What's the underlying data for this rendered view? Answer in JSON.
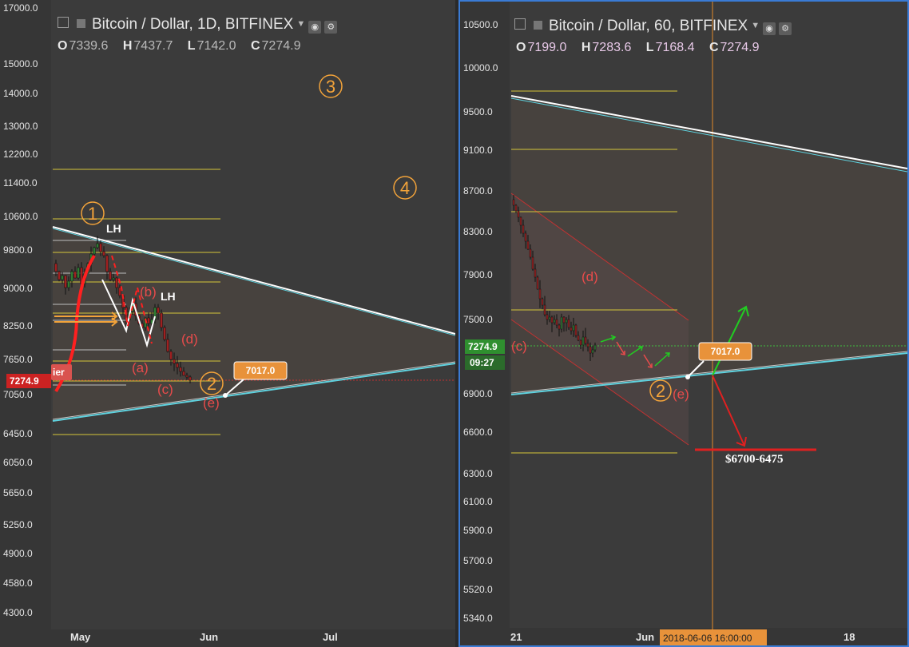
{
  "left": {
    "title": "Bitcoin / Dollar, 1D, BITFINEX",
    "ohlc": {
      "o": "7339.6",
      "h": "7437.7",
      "l": "7142.0",
      "c": "7274.9"
    },
    "y_ticks": [
      "17000.0",
      "15000.0",
      "14000.0",
      "13000.0",
      "12200.0",
      "11400.0",
      "10600.0",
      "9800.0",
      "9000.0",
      "8250.0",
      "7650.0",
      "7050.0",
      "6450.0",
      "6050.0",
      "5650.0",
      "5250.0",
      "4900.0",
      "4580.0",
      "4300.0"
    ],
    "x_ticks": [
      "May",
      "Jun",
      "Jul"
    ],
    "price_label": "7274.9",
    "side_label": "ier",
    "target_label": "7017.0",
    "waves": [
      "(a)",
      "(b)",
      "(c)",
      "(d)",
      "(e)"
    ],
    "circled": [
      "1",
      "2",
      "3",
      "4"
    ],
    "lh_labels": [
      "LH",
      "LH"
    ]
  },
  "right": {
    "title": "Bitcoin / Dollar, 60, BITFINEX",
    "ohlc": {
      "o": "7199.0",
      "h": "7283.6",
      "l": "7168.4",
      "c": "7274.9"
    },
    "y_ticks": [
      "10500.0",
      "10000.0",
      "9500.0",
      "9100.0",
      "8700.0",
      "8300.0",
      "7900.0",
      "7500.0",
      "6900.0",
      "6600.0",
      "6300.0",
      "6100.0",
      "5900.0",
      "5700.0",
      "5520.0",
      "5340.0"
    ],
    "x_ticks": [
      "21",
      "Jun",
      "18"
    ],
    "crosshair_date": "2018-06-06 16:00:00",
    "price_label": "7274.9",
    "countdown": "09:27",
    "target_label": "7017.0",
    "waves": [
      "(c)",
      "(d)",
      "(e)"
    ],
    "circled": [
      "2"
    ],
    "price_target": "$6700-6475",
    "colors": {
      "accent": "#f2a33a",
      "bear": "#e84b4b",
      "bull": "#22cc22",
      "trend": "#5fd3e0"
    }
  },
  "chart_data": [
    {
      "type": "candlestick",
      "title": "Bitcoin / Dollar, 1D, BITFINEX",
      "ylim": [
        4200,
        17000
      ],
      "y_scale": "log",
      "x_ticks": [
        "May",
        "Jun",
        "Jul"
      ],
      "last_close": 7274.9,
      "target": 7017.0,
      "fib_levels": [
        11750,
        10500,
        9750,
        9100,
        8500,
        7550,
        7100,
        6400
      ],
      "grid": false
    },
    {
      "type": "candlestick",
      "title": "Bitcoin / Dollar, 60, BITFINEX",
      "ylim": [
        5300,
        10600
      ],
      "y_scale": "log",
      "x_ticks": [
        "21",
        "Jun",
        "18"
      ],
      "last_close": 7274.9,
      "target": 7017.0,
      "projected_range": [
        6475,
        6700
      ],
      "fib_levels": [
        9750,
        9100,
        8450,
        7600,
        6450
      ],
      "grid": false
    }
  ]
}
